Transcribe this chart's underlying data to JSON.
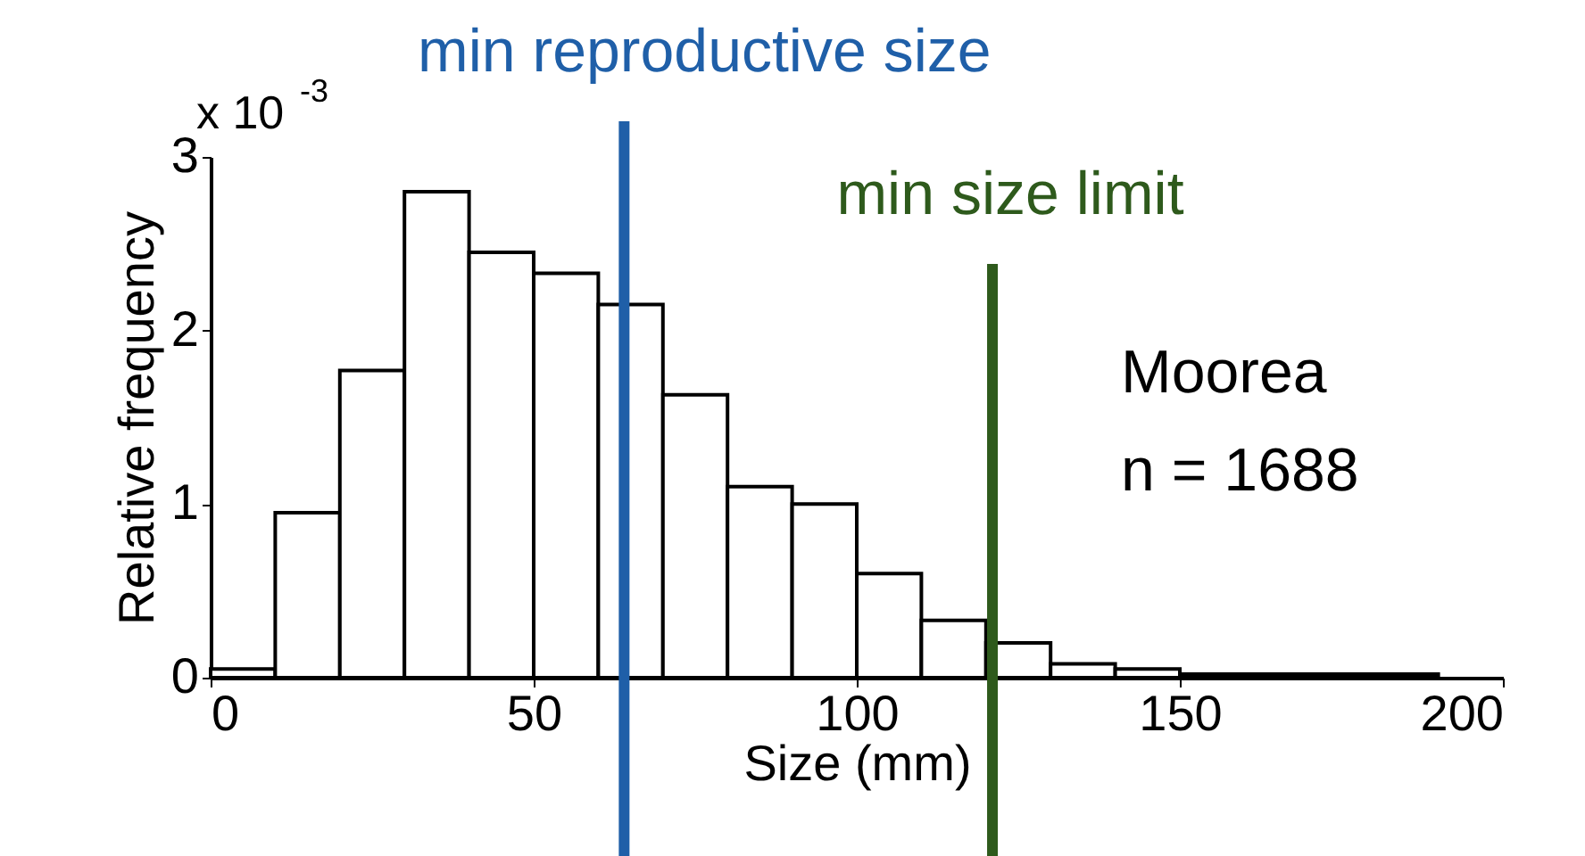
{
  "chart_data": {
    "type": "histogram",
    "xlabel": "Size (mm)",
    "ylabel": "Relative frequency",
    "bins": [
      0,
      10,
      20,
      30,
      40,
      50,
      60,
      70,
      80,
      90,
      100,
      110,
      120,
      130,
      140,
      150,
      160,
      170,
      180,
      190
    ],
    "values": [
      0.05,
      0.95,
      1.77,
      2.8,
      2.45,
      2.33,
      2.15,
      1.63,
      1.1,
      1.0,
      0.6,
      0.33,
      0.2,
      0.08,
      0.05,
      0.02,
      0.02,
      0.02,
      0.02
    ],
    "color": "#ffffff",
    "xlim": [
      0,
      200
    ],
    "xticks": [
      0,
      50,
      100,
      150,
      200
    ],
    "ylim": [
      0,
      3
    ],
    "yticks": [
      0,
      1,
      2,
      3
    ],
    "grid": false,
    "ref_lines": [
      {
        "axis": "x",
        "value": 64,
        "label": "min reproductive size",
        "color": "#1f5fa8"
      },
      {
        "axis": "x",
        "value": 121,
        "label": "min size limit",
        "color": "#2e5a1c"
      }
    ],
    "annotations": [
      "x 10$^{-3}$",
      "Moorea",
      "n = 1688"
    ]
  }
}
